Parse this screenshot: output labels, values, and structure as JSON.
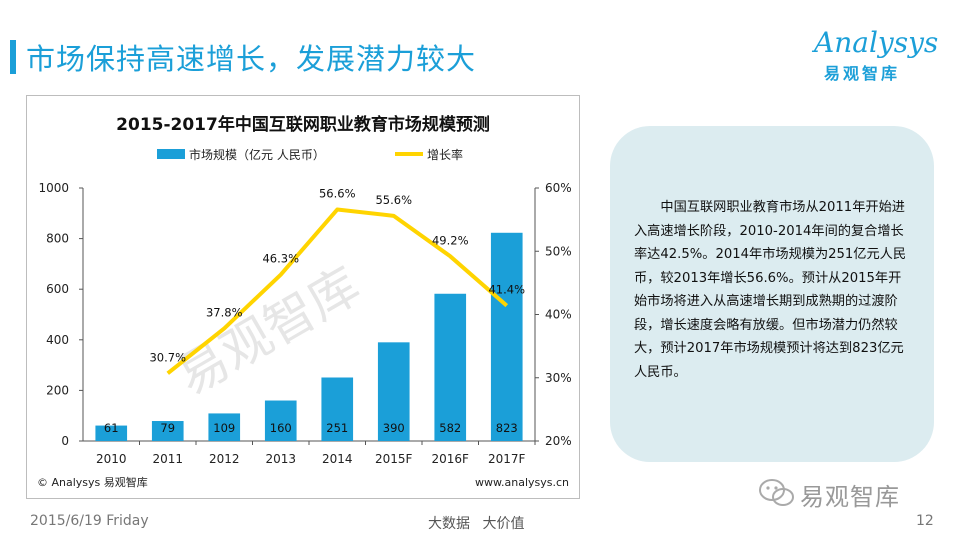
{
  "page": {
    "title": "市场保持高速增长，发展潜力较大",
    "logo_text": "Analysys",
    "logo_sub": "易观智库",
    "info_text": "中国互联网职业教育市场从2011年开始进入高速增长阶段，2010-2014年间的复合增长率达42.5%。2014年市场规模为251亿元人民币，较2013年增长56.6%。预计从2015年开始市场将进入从高速增长期到成熟期的过渡阶段，增长速度会略有放缓。但市场潜力仍然较大，预计2017年市场规模预计将达到823亿元人民币。",
    "footer_date": "2015/6/19 Friday",
    "footer_mid": "大数据 大价值",
    "page_number": "12",
    "wechat_label": "易观智库"
  },
  "colors": {
    "accent": "#1b9fd8",
    "line": "#ffd400",
    "box": "#dcecf0"
  },
  "chart_data": {
    "type": "bar",
    "title": "2015-2017年中国互联网职业教育市场规模预测",
    "categories": [
      "2010",
      "2011",
      "2012",
      "2013",
      "2014",
      "2015F",
      "2016F",
      "2017F"
    ],
    "series": [
      {
        "name": "市场规模（亿元 人民币）",
        "type": "bar",
        "axis": "left",
        "values": [
          61,
          79,
          109,
          160,
          251,
          390,
          582,
          823
        ]
      },
      {
        "name": "增长率",
        "type": "line",
        "axis": "right",
        "values": [
          null,
          30.7,
          37.8,
          46.3,
          56.6,
          55.6,
          49.2,
          41.4
        ],
        "labels": [
          "",
          "30.7%",
          "37.8%",
          "46.3%",
          "56.6%",
          "55.6%",
          "49.2%",
          "41.4%"
        ]
      }
    ],
    "ylim": [
      0,
      1000
    ],
    "yticks": [
      "0",
      "200",
      "400",
      "600",
      "800",
      "1000"
    ],
    "y2lim": [
      20,
      60
    ],
    "y2ticks": [
      "20%",
      "30%",
      "40%",
      "50%",
      "60%"
    ],
    "source_left": "© Analysys 易观智库",
    "source_right": "www.analysys.cn",
    "watermark": "易观智库"
  }
}
